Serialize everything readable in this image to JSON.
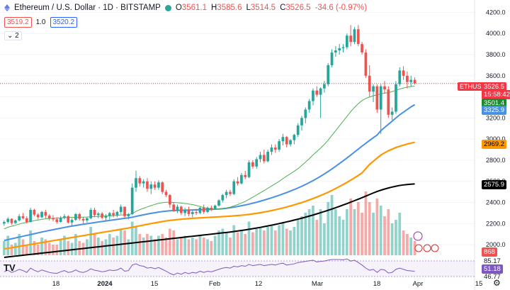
{
  "header": {
    "symbol_title": "Ethereum / U.S. Dollar · 1D · BITSTAMP",
    "open_label": "O",
    "open": "3561.1",
    "high_label": "H",
    "high": "3585.6",
    "low_label": "L",
    "low": "3514.5",
    "close_label": "C",
    "close": "3526.5",
    "change": "-34.6 (-0.97%)"
  },
  "trade": {
    "sell": "3519.2",
    "qty": "1.0",
    "buy": "3520.2"
  },
  "indicators_toggle": "2",
  "price_scale": {
    "ticks": [
      "4200.0",
      "4000.0",
      "3800.0",
      "3600.0",
      "3400.0",
      "3200.0",
      "3000.0",
      "2800.0",
      "2600.0",
      "2400.0",
      "2200.0",
      "2000.0"
    ],
    "ticker": "ETHUSD",
    "last_price": "3526.5",
    "countdown": "15:58:42",
    "ma_fast": "3501.4",
    "ma_mid": "3325.9",
    "ma_slow": "2969.2",
    "ma_long": "2575.9",
    "volume": "868",
    "rsi_a": "85.17",
    "rsi_b": "51.18",
    "rsi_c": "46.77"
  },
  "time_axis": [
    "18",
    "2024",
    "15",
    "Feb",
    "12",
    "Mar",
    "18",
    "Apr",
    "15"
  ],
  "colors": {
    "up": "#26a69a",
    "down": "#ef5350",
    "ma_fast": "#4caf50",
    "ma_mid": "#4a90e2",
    "ma_slow": "#ff9800",
    "ma_long": "#000000",
    "rsi": "#7e57c2"
  },
  "chart_data": {
    "type": "candlestick",
    "ylim": [
      1900,
      4250
    ],
    "candles": [
      [
        2200,
        2230,
        2180,
        2215
      ],
      [
        2215,
        2260,
        2200,
        2245
      ],
      [
        2245,
        2250,
        2190,
        2205
      ],
      [
        2205,
        2240,
        2195,
        2230
      ],
      [
        2230,
        2290,
        2220,
        2270
      ],
      [
        2270,
        2300,
        2240,
        2250
      ],
      [
        2250,
        2270,
        2200,
        2215
      ],
      [
        2215,
        2350,
        2210,
        2330
      ],
      [
        2330,
        2340,
        2270,
        2285
      ],
      [
        2285,
        2300,
        2240,
        2260
      ],
      [
        2260,
        2320,
        2250,
        2310
      ],
      [
        2310,
        2330,
        2250,
        2275
      ],
      [
        2275,
        2290,
        2230,
        2250
      ],
      [
        2250,
        2280,
        2220,
        2240
      ],
      [
        2240,
        2260,
        2200,
        2215
      ],
      [
        2215,
        2270,
        2210,
        2255
      ],
      [
        2255,
        2290,
        2240,
        2270
      ],
      [
        2270,
        2280,
        2200,
        2210
      ],
      [
        2210,
        2250,
        2180,
        2235
      ],
      [
        2235,
        2300,
        2225,
        2290
      ],
      [
        2290,
        2300,
        2230,
        2245
      ],
      [
        2245,
        2260,
        2200,
        2230
      ],
      [
        2230,
        2260,
        2210,
        2250
      ],
      [
        2250,
        2350,
        2240,
        2330
      ],
      [
        2330,
        2350,
        2260,
        2280
      ],
      [
        2280,
        2310,
        2250,
        2295
      ],
      [
        2295,
        2310,
        2240,
        2255
      ],
      [
        2255,
        2290,
        2230,
        2270
      ],
      [
        2270,
        2310,
        2240,
        2300
      ],
      [
        2300,
        2330,
        2260,
        2280
      ],
      [
        2280,
        2320,
        2260,
        2310
      ],
      [
        2310,
        2380,
        2290,
        2360
      ],
      [
        2360,
        2360,
        2250,
        2270
      ],
      [
        2270,
        2300,
        2240,
        2290
      ],
      [
        2290,
        2580,
        2280,
        2540
      ],
      [
        2540,
        2700,
        2500,
        2630
      ],
      [
        2630,
        2650,
        2550,
        2580
      ],
      [
        2580,
        2620,
        2540,
        2600
      ],
      [
        2600,
        2630,
        2500,
        2530
      ],
      [
        2530,
        2600,
        2480,
        2570
      ],
      [
        2570,
        2600,
        2520,
        2540
      ],
      [
        2540,
        2610,
        2520,
        2590
      ],
      [
        2590,
        2600,
        2480,
        2500
      ],
      [
        2500,
        2520,
        2450,
        2470
      ],
      [
        2470,
        2480,
        2350,
        2380
      ],
      [
        2380,
        2400,
        2310,
        2320
      ],
      [
        2320,
        2380,
        2300,
        2360
      ],
      [
        2360,
        2370,
        2280,
        2300
      ],
      [
        2300,
        2350,
        2270,
        2330
      ],
      [
        2330,
        2360,
        2270,
        2290
      ],
      [
        2290,
        2330,
        2260,
        2310
      ],
      [
        2310,
        2340,
        2280,
        2300
      ],
      [
        2300,
        2360,
        2290,
        2350
      ],
      [
        2350,
        2380,
        2290,
        2310
      ],
      [
        2310,
        2360,
        2300,
        2350
      ],
      [
        2350,
        2370,
        2320,
        2340
      ],
      [
        2340,
        2380,
        2330,
        2370
      ],
      [
        2370,
        2430,
        2360,
        2420
      ],
      [
        2420,
        2480,
        2400,
        2470
      ],
      [
        2470,
        2520,
        2440,
        2500
      ],
      [
        2500,
        2520,
        2460,
        2480
      ],
      [
        2480,
        2620,
        2470,
        2600
      ],
      [
        2600,
        2640,
        2560,
        2580
      ],
      [
        2580,
        2680,
        2570,
        2660
      ],
      [
        2660,
        2700,
        2620,
        2640
      ],
      [
        2640,
        2800,
        2630,
        2780
      ],
      [
        2780,
        2800,
        2720,
        2740
      ],
      [
        2740,
        2830,
        2720,
        2810
      ],
      [
        2810,
        2880,
        2780,
        2850
      ],
      [
        2850,
        2900,
        2770,
        2790
      ],
      [
        2790,
        2900,
        2780,
        2880
      ],
      [
        2880,
        2950,
        2850,
        2920
      ],
      [
        2920,
        2950,
        2870,
        2900
      ],
      [
        2900,
        3000,
        2880,
        2980
      ],
      [
        2980,
        3050,
        2940,
        3020
      ],
      [
        3020,
        3030,
        2920,
        2950
      ],
      [
        2950,
        3000,
        2930,
        2990
      ],
      [
        2990,
        3050,
        2950,
        3040
      ],
      [
        3040,
        3150,
        3020,
        3130
      ],
      [
        3130,
        3220,
        3080,
        3200
      ],
      [
        3200,
        3300,
        3150,
        3280
      ],
      [
        3280,
        3380,
        3250,
        3360
      ],
      [
        3360,
        3480,
        3320,
        3460
      ],
      [
        3460,
        3500,
        3400,
        3420
      ],
      [
        3420,
        3490,
        3200,
        3480
      ],
      [
        3480,
        3550,
        3440,
        3520
      ],
      [
        3520,
        3720,
        3500,
        3700
      ],
      [
        3700,
        3850,
        3680,
        3820
      ],
      [
        3820,
        3880,
        3780,
        3840
      ],
      [
        3840,
        3900,
        3800,
        3860
      ],
      [
        3860,
        3900,
        3820,
        3870
      ],
      [
        3870,
        4000,
        3850,
        3980
      ],
      [
        3980,
        4080,
        3880,
        3920
      ],
      [
        3920,
        4060,
        3900,
        4040
      ],
      [
        4040,
        4080,
        3880,
        3900
      ],
      [
        3900,
        3920,
        3800,
        3820
      ],
      [
        3820,
        3850,
        3580,
        3600
      ],
      [
        3600,
        3700,
        3400,
        3450
      ],
      [
        3450,
        3520,
        3350,
        3500
      ],
      [
        3500,
        3520,
        3250,
        3280
      ],
      [
        3280,
        3520,
        3050,
        3500
      ],
      [
        3500,
        3550,
        3430,
        3470
      ],
      [
        3470,
        3500,
        3200,
        3230
      ],
      [
        3230,
        3300,
        3180,
        3260
      ],
      [
        3260,
        3550,
        3240,
        3520
      ],
      [
        3520,
        3680,
        3500,
        3650
      ],
      [
        3650,
        3690,
        3560,
        3600
      ],
      [
        3600,
        3640,
        3480,
        3540
      ],
      [
        3540,
        3600,
        3500,
        3561
      ],
      [
        3561.1,
        3585.6,
        3514.5,
        3526.5
      ]
    ],
    "volume": [
      40,
      55,
      30,
      35,
      60,
      45,
      30,
      70,
      40,
      30,
      50,
      45,
      35,
      30,
      30,
      45,
      55,
      40,
      35,
      60,
      40,
      35,
      45,
      80,
      60,
      50,
      40,
      45,
      60,
      50,
      55,
      75,
      70,
      45,
      95,
      80,
      60,
      50,
      60,
      55,
      45,
      55,
      60,
      50,
      75,
      70,
      45,
      50,
      55,
      45,
      50,
      45,
      55,
      50,
      45,
      40,
      55,
      70,
      75,
      65,
      50,
      85,
      65,
      70,
      60,
      95,
      65,
      75,
      80,
      70,
      80,
      85,
      70,
      85,
      90,
      75,
      70,
      80,
      100,
      110,
      120,
      130,
      140,
      100,
      130,
      90,
      150,
      170,
      130,
      110,
      100,
      130,
      160,
      130,
      150,
      120,
      180,
      150,
      120,
      160,
      140,
      110,
      130,
      90,
      100,
      120,
      70,
      60,
      50,
      40
    ],
    "ma_fast": [
      2150,
      2165,
      2175,
      2185,
      2195,
      2205,
      2212,
      2220,
      2228,
      2234,
      2240,
      2245,
      2248,
      2250,
      2252,
      2254,
      2256,
      2258,
      2258,
      2260,
      2260,
      2261,
      2262,
      2265,
      2267,
      2268,
      2270,
      2272,
      2273,
      2275,
      2278,
      2282,
      2283,
      2284,
      2295,
      2315,
      2332,
      2345,
      2358,
      2370,
      2382,
      2392,
      2398,
      2402,
      2402,
      2400,
      2398,
      2395,
      2390,
      2385,
      2380,
      2372,
      2362,
      2352,
      2345,
      2338,
      2336,
      2338,
      2342,
      2348,
      2356,
      2368,
      2380,
      2395,
      2410,
      2430,
      2450,
      2470,
      2492,
      2512,
      2534,
      2556,
      2578,
      2600,
      2625,
      2650,
      2672,
      2695,
      2720,
      2750,
      2782,
      2815,
      2850,
      2882,
      2915,
      2950,
      2990,
      3035,
      3080,
      3125,
      3170,
      3215,
      3260,
      3300,
      3335,
      3365,
      3385,
      3398,
      3410,
      3420,
      3428,
      3435,
      3440,
      3450,
      3462,
      3474,
      3484,
      3492,
      3498,
      3501.4
    ],
    "ma_mid": [
      2040,
      2048,
      2056,
      2064,
      2072,
      2080,
      2088,
      2096,
      2104,
      2112,
      2120,
      2128,
      2135,
      2142,
      2149,
      2156,
      2163,
      2170,
      2176,
      2182,
      2188,
      2194,
      2199,
      2204,
      2210,
      2215,
      2220,
      2225,
      2230,
      2235,
      2240,
      2245,
      2250,
      2254,
      2260,
      2268,
      2276,
      2283,
      2290,
      2297,
      2303,
      2309,
      2314,
      2318,
      2321,
      2323,
      2325,
      2326,
      2327,
      2328,
      2329,
      2330,
      2331,
      2332,
      2333,
      2334,
      2336,
      2338,
      2341,
      2345,
      2350,
      2356,
      2362,
      2369,
      2376,
      2384,
      2393,
      2402,
      2412,
      2422,
      2433,
      2444,
      2456,
      2468,
      2481,
      2494,
      2508,
      2522,
      2537,
      2553,
      2570,
      2588,
      2607,
      2627,
      2648,
      2670,
      2693,
      2717,
      2742,
      2768,
      2794,
      2821,
      2849,
      2877,
      2905,
      2933,
      2960,
      2987,
      3013,
      3038,
      3080,
      3110,
      3140,
      3170,
      3200,
      3230,
      3255,
      3280,
      3305,
      3325.9
    ],
    "ma_slow": [
      1960,
      1966,
      1972,
      1978,
      1984,
      1990,
      1996,
      2002,
      2008,
      2014,
      2020,
      2026,
      2032,
      2038,
      2044,
      2050,
      2056,
      2062,
      2068,
      2074,
      2080,
      2086,
      2092,
      2098,
      2104,
      2110,
      2116,
      2122,
      2128,
      2134,
      2140,
      2146,
      2152,
      2158,
      2165,
      2172,
      2179,
      2186,
      2193,
      2200,
      2207,
      2213,
      2219,
      2225,
      2230,
      2234,
      2238,
      2241,
      2244,
      2247,
      2250,
      2252,
      2254,
      2256,
      2258,
      2260,
      2262,
      2264,
      2266,
      2268,
      2270,
      2273,
      2276,
      2279,
      2283,
      2287,
      2292,
      2297,
      2303,
      2309,
      2316,
      2323,
      2331,
      2339,
      2348,
      2357,
      2367,
      2377,
      2388,
      2399,
      2411,
      2424,
      2437,
      2451,
      2466,
      2481,
      2497,
      2514,
      2532,
      2551,
      2570,
      2590,
      2611,
      2633,
      2656,
      2680,
      2720,
      2760,
      2790,
      2820,
      2850,
      2870,
      2890,
      2905,
      2920,
      2932,
      2943,
      2953,
      2962,
      2969.2
    ],
    "ma_long": [
      1880,
      1884,
      1888,
      1892,
      1896,
      1900,
      1904,
      1908,
      1912,
      1916,
      1920,
      1924,
      1928,
      1932,
      1936,
      1940,
      1944,
      1948,
      1952,
      1956,
      1960,
      1964,
      1968,
      1972,
      1976,
      1980,
      1984,
      1988,
      1992,
      1996,
      2000,
      2004,
      2008,
      2012,
      2016,
      2020,
      2024,
      2028,
      2032,
      2036,
      2040,
      2044,
      2048,
      2052,
      2056,
      2060,
      2064,
      2068,
      2072,
      2076,
      2080,
      2084,
      2088,
      2092,
      2096,
      2100,
      2104,
      2108,
      2112,
      2116,
      2120,
      2125,
      2130,
      2135,
      2140,
      2146,
      2152,
      2158,
      2164,
      2171,
      2178,
      2185,
      2192,
      2200,
      2208,
      2216,
      2224,
      2233,
      2242,
      2251,
      2261,
      2271,
      2281,
      2292,
      2303,
      2314,
      2326,
      2338,
      2350,
      2363,
      2376,
      2389,
      2403,
      2417,
      2431,
      2445,
      2460,
      2475,
      2490,
      2504,
      2516,
      2527,
      2537,
      2546,
      2554,
      2561,
      2566,
      2570,
      2573,
      2575.9
    ],
    "rsi": [
      50,
      55,
      48,
      52,
      58,
      54,
      48,
      62,
      55,
      50,
      56,
      52,
      48,
      46,
      45,
      50,
      54,
      48,
      50,
      56,
      50,
      48,
      52,
      60,
      55,
      53,
      50,
      52,
      56,
      54,
      56,
      62,
      52,
      54,
      72,
      76,
      70,
      68,
      62,
      64,
      60,
      64,
      58,
      52,
      45,
      40,
      46,
      42,
      48,
      44,
      48,
      46,
      52,
      48,
      52,
      50,
      54,
      58,
      62,
      64,
      62,
      68,
      66,
      70,
      68,
      74,
      70,
      72,
      74,
      70,
      72,
      74,
      72,
      76,
      78,
      72,
      74,
      76,
      80,
      82,
      84,
      86,
      88,
      82,
      84,
      85,
      88,
      90,
      90,
      90,
      89,
      92,
      85,
      88,
      80,
      72,
      62,
      55,
      58,
      48,
      58,
      56,
      46,
      48,
      58,
      62,
      58,
      54,
      53,
      51.18
    ]
  }
}
